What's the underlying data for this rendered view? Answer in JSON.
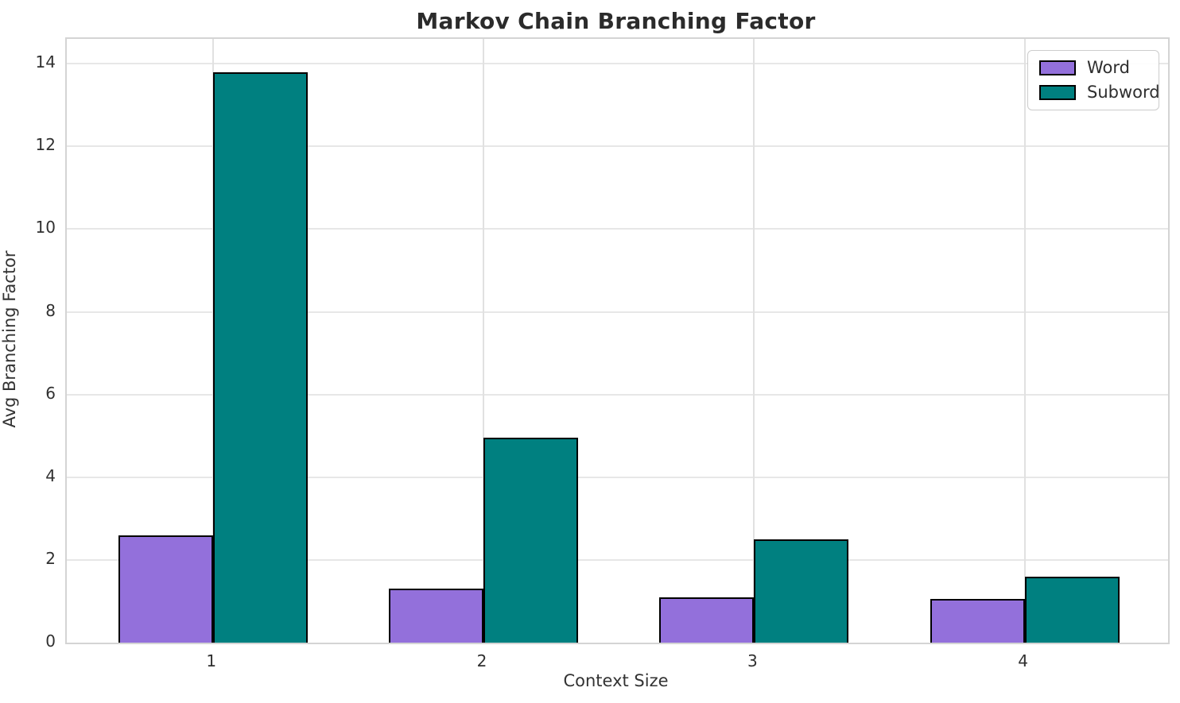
{
  "chart_data": {
    "type": "bar",
    "title": "Markov Chain Branching Factor",
    "xlabel": "Context Size",
    "ylabel": "Avg Branching Factor",
    "categories": [
      "1",
      "2",
      "3",
      "4"
    ],
    "category_x": [
      1,
      2,
      3,
      4
    ],
    "series": [
      {
        "name": "Word",
        "color": "#9370DB",
        "values": [
          2.6,
          1.3,
          1.1,
          1.05
        ]
      },
      {
        "name": "Subword",
        "color": "#008080",
        "values": [
          13.8,
          4.95,
          2.5,
          1.6
        ]
      }
    ],
    "bar_width_units": 0.35,
    "bar_edge_color": "#000000",
    "xlim": [
      0.46,
      4.53
    ],
    "ylim": [
      0,
      14.6
    ],
    "yticks": [
      0,
      2,
      4,
      6,
      8,
      10,
      12,
      14
    ],
    "grid": true,
    "legend_position": "upper right",
    "colors": {
      "grid": "#e7e7e7",
      "spine": "#d4d4d4",
      "title_text": "#2b2b2b",
      "tick_text": "#303030"
    }
  }
}
